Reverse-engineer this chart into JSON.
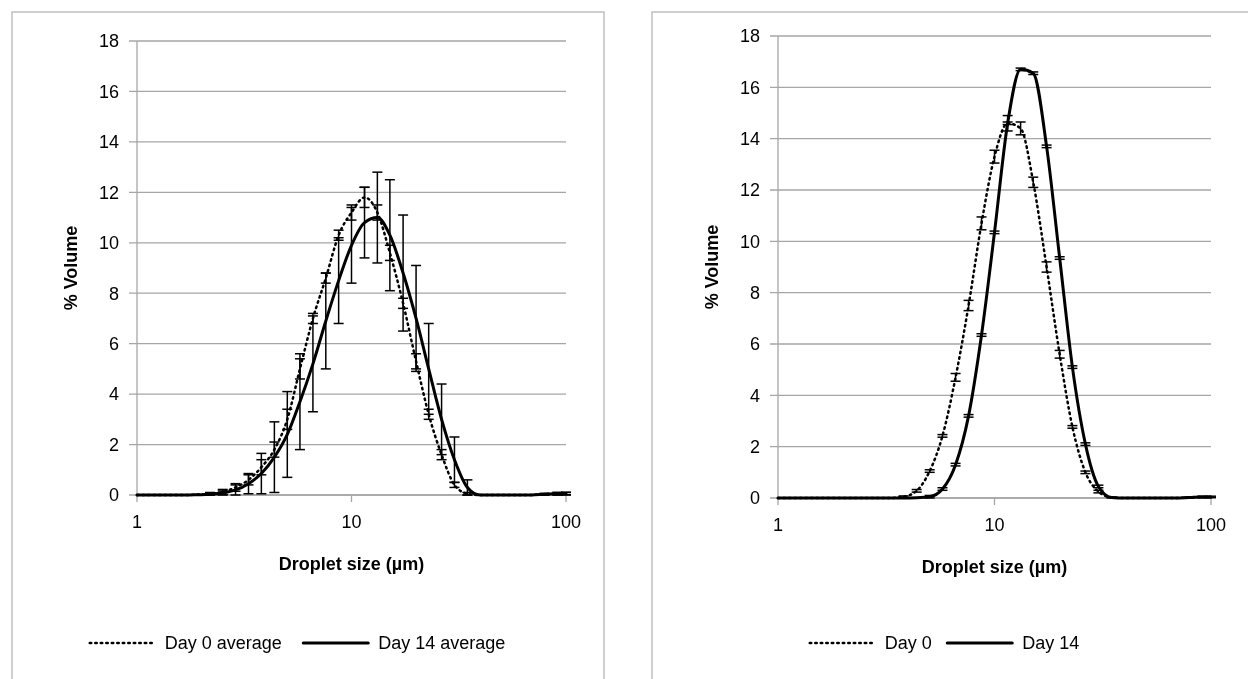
{
  "chart_data": [
    {
      "type": "line",
      "xlabel": "Droplet size (µm)",
      "ylabel": "% Volume",
      "log": "x",
      "xlim": [
        1,
        100
      ],
      "xticks": [
        1,
        10,
        100
      ],
      "ylim": [
        0,
        18
      ],
      "yticks": [
        0,
        2,
        4,
        6,
        8,
        10,
        12,
        14,
        16,
        18
      ],
      "grid": "y",
      "legend": "bottom",
      "marker": "none",
      "x": [
        1,
        1.32,
        1.74,
        1.91,
        2.19,
        2.51,
        2.88,
        3.31,
        3.8,
        4.37,
        5.02,
        5.75,
        6.61,
        7.59,
        8.71,
        10,
        11.5,
        13.2,
        15.1,
        17.4,
        20,
        22.9,
        26.3,
        30.2,
        34.7,
        39.8,
        52.5,
        69.2,
        79.4,
        91.2,
        100
      ],
      "series": [
        {
          "name": "Day 0 average",
          "color": "#000000",
          "line_style": "dotted",
          "values": [
            0,
            0,
            0,
            0.02,
            0.05,
            0.12,
            0.3,
            0.6,
            1.1,
            1.8,
            3.0,
            5.0,
            7.0,
            8.6,
            10.3,
            11.2,
            11.8,
            11.2,
            9.6,
            7.6,
            5.3,
            3.2,
            1.6,
            0.4,
            0.05,
            0,
            0,
            0,
            0.03,
            0.05,
            0.05
          ],
          "errors": [
            null,
            null,
            null,
            null,
            0.05,
            0.1,
            0.15,
            0.2,
            0.3,
            0.3,
            0.4,
            0.4,
            0.2,
            0.2,
            0.2,
            0.3,
            0.4,
            0.3,
            0.3,
            0.2,
            0.3,
            0.2,
            0.2,
            0.1,
            0.05,
            null,
            null,
            null,
            0.03,
            0.05,
            0.05
          ]
        },
        {
          "name": "Day 14 average",
          "color": "#000000",
          "line_style": "solid",
          "values": [
            0,
            0,
            0,
            0.01,
            0.03,
            0.08,
            0.2,
            0.45,
            0.85,
            1.5,
            2.4,
            3.7,
            5.2,
            6.9,
            8.5,
            9.9,
            10.8,
            11.0,
            10.3,
            8.8,
            7.0,
            5.0,
            3.0,
            1.4,
            0.3,
            0,
            0,
            0,
            0.03,
            0.05,
            0.06
          ],
          "errors": [
            null,
            null,
            null,
            null,
            0.03,
            0.08,
            0.2,
            0.4,
            0.8,
            1.4,
            1.7,
            1.9,
            1.9,
            1.9,
            1.7,
            1.5,
            1.4,
            1.8,
            2.2,
            2.3,
            2.1,
            1.8,
            1.4,
            0.9,
            0.3,
            null,
            null,
            null,
            0.03,
            0.05,
            0.05
          ]
        }
      ]
    },
    {
      "type": "line",
      "xlabel": "Droplet size (µm)",
      "ylabel": "% Volume",
      "log": "x",
      "xlim": [
        1,
        100
      ],
      "xticks": [
        1,
        10,
        100
      ],
      "ylim": [
        0,
        18
      ],
      "yticks": [
        0,
        2,
        4,
        6,
        8,
        10,
        12,
        14,
        16,
        18
      ],
      "grid": "y",
      "legend": "bottom",
      "marker": "none",
      "x": [
        1,
        1.32,
        1.74,
        1.91,
        2.19,
        2.51,
        2.88,
        3.31,
        3.8,
        4.37,
        5.02,
        5.75,
        6.61,
        7.59,
        8.71,
        10,
        11.5,
        13.2,
        15.1,
        17.4,
        20,
        22.9,
        26.3,
        30.2,
        34.7,
        39.8,
        52.5,
        69.2,
        79.4,
        91.2,
        100
      ],
      "series": [
        {
          "name": "Day 0",
          "color": "#000000",
          "line_style": "dotted",
          "values": [
            0,
            0,
            0,
            0,
            0,
            0,
            0,
            0,
            0.05,
            0.28,
            1.05,
            2.42,
            4.7,
            7.5,
            10.7,
            13.3,
            14.6,
            14.4,
            12.3,
            9.0,
            5.6,
            2.77,
            1.0,
            0.25,
            0.02,
            0,
            0,
            0,
            0.02,
            0.04,
            0.04
          ],
          "errors": [
            null,
            null,
            null,
            null,
            null,
            null,
            null,
            null,
            0.03,
            0.05,
            0.05,
            0.05,
            0.15,
            0.2,
            0.25,
            0.25,
            0.3,
            0.25,
            0.2,
            0.2,
            0.15,
            0.05,
            0.05,
            0.05,
            0.02,
            null,
            null,
            null,
            0.02,
            0.03,
            0.03
          ]
        },
        {
          "name": "Day 14",
          "color": "#000000",
          "line_style": "solid",
          "values": [
            0,
            0,
            0,
            0,
            0,
            0,
            0,
            0,
            0,
            0.01,
            0.05,
            0.35,
            1.3,
            3.2,
            6.35,
            10.35,
            14.6,
            16.7,
            16.55,
            13.7,
            9.35,
            5.1,
            2.1,
            0.45,
            0.02,
            0,
            0,
            0,
            0.02,
            0.04,
            0.04
          ],
          "errors": [
            null,
            null,
            null,
            null,
            null,
            null,
            null,
            null,
            null,
            null,
            0.05,
            0.05,
            0.05,
            0.05,
            0.05,
            0.05,
            0.05,
            0.05,
            0.05,
            0.05,
            0.05,
            0.05,
            0.05,
            0.05,
            null,
            null,
            null,
            null,
            null,
            null,
            null
          ]
        }
      ]
    }
  ]
}
